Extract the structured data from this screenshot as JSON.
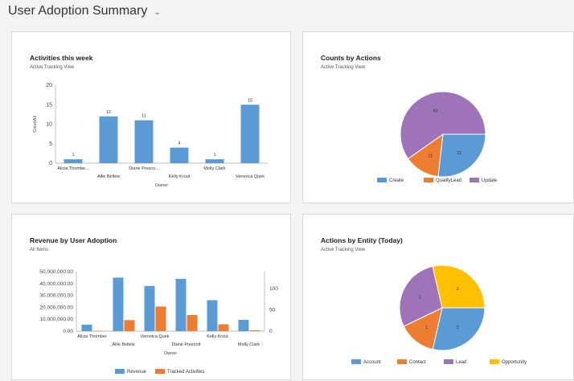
{
  "header": {
    "title": "User Adoption Summary",
    "chevron": "chevron-down-icon"
  },
  "colors": {
    "blue": "#5b9bd5",
    "orange": "#ed7d31",
    "purple": "#9e73b8",
    "gold": "#ffc000"
  },
  "cards": [
    {
      "title": "Activities this week",
      "subtitle": "Active Tracking View"
    },
    {
      "title": "Counts by Actions",
      "subtitle": "Active Tracking View"
    },
    {
      "title": "Revenue by User Adoption",
      "subtitle": "All Items"
    },
    {
      "title": "Actions by Entity (Today)",
      "subtitle": "Active Tracking View"
    }
  ],
  "chart_data": [
    {
      "type": "bar",
      "title": "Activities this week",
      "xlabel": "Owner",
      "ylabel": "CountAll",
      "ylim": [
        0,
        20
      ],
      "yticks": [
        "0",
        "5",
        "10",
        "15",
        "20"
      ],
      "categories": [
        "Alicia Thombe...",
        "Allie Bellew",
        "Diane Presco...",
        "Kelly Krout",
        "Molly Clark",
        "Veronica Quek"
      ],
      "values": [
        1,
        12,
        11,
        4,
        1,
        15
      ],
      "value_labels": [
        "1",
        "12",
        "11",
        "4",
        "1",
        "15"
      ],
      "grid": false
    },
    {
      "type": "pie",
      "title": "Counts by Actions",
      "categories": [
        "Create",
        "QualifyLead",
        "Update"
      ],
      "values": [
        22,
        11,
        49
      ],
      "value_labels": [
        "22",
        "11",
        "49"
      ],
      "legend": "bottom"
    },
    {
      "type": "bar",
      "title": "Revenue by User Adoption",
      "xlabel": "Owner",
      "categories": [
        "Alicia Thomber",
        "Allie Bellew",
        "Veronica Quek",
        "Diane Prescott",
        "Kelly Krout",
        "Molly Clark"
      ],
      "series": [
        {
          "name": "Revenue",
          "axis": "left",
          "values": [
            5500000,
            45000000,
            38000000,
            44000000,
            26000000,
            9500000
          ]
        },
        {
          "name": "Tracked Activities",
          "axis": "right",
          "values": [
            1,
            26,
            58,
            38,
            16,
            2
          ]
        }
      ],
      "ylim": [
        0,
        50000000
      ],
      "yticks": [
        "0.00",
        "10,000,000.00",
        "20,000,000.00",
        "30,000,000.00",
        "40,000,000.00",
        "50,000,000.00"
      ],
      "y2lim": [
        0,
        140
      ],
      "y2ticks": [
        "0",
        "50",
        "100"
      ],
      "legend": "bottom"
    },
    {
      "type": "pie",
      "title": "Actions by Entity (Today)",
      "categories": [
        "Account",
        "Contact",
        "Lead",
        "Opportunity"
      ],
      "values": [
        2,
        1,
        2,
        2
      ],
      "value_labels": [
        "2",
        "1",
        "2",
        "2"
      ],
      "legend": "bottom"
    }
  ]
}
